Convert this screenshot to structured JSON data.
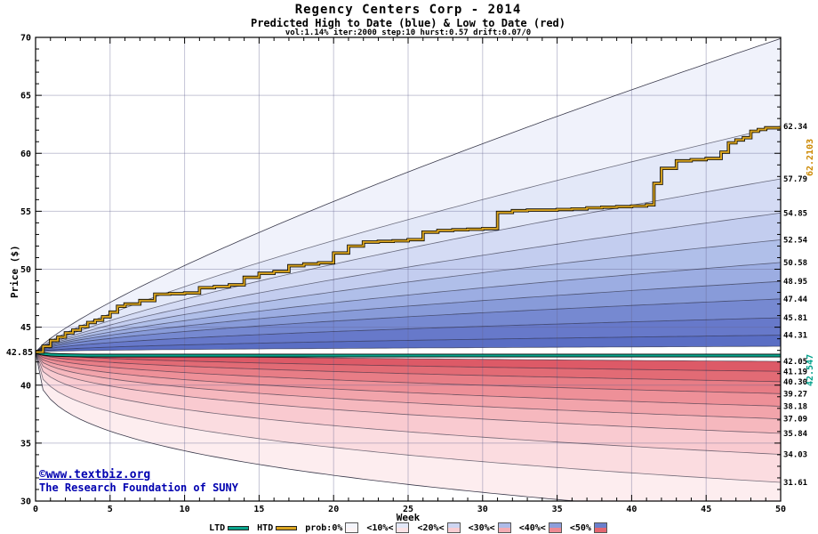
{
  "watermark": {
    "line1": "©www.textbiz.org",
    "line2": "The Research Foundation of SUNY",
    "color": "#0000b0"
  },
  "chart_data": {
    "type": "area",
    "title": "Regency Centers Corp - 2014",
    "subtitle": "Predicted High to Date (blue) &  Low to Date (red)",
    "params_line": "vol:1.14% iter:2000 step:10 hurst:0.57 drift:0.07/0",
    "xlabel": "Week",
    "ylabel": "Price ($)",
    "xlim": [
      0,
      50
    ],
    "ylim": [
      30,
      70
    ],
    "x_ticks": [
      0,
      5,
      10,
      15,
      20,
      25,
      30,
      35,
      40,
      45,
      50
    ],
    "y_ticks": [
      30,
      35,
      40,
      45,
      50,
      55,
      60,
      65,
      70
    ],
    "grid": true,
    "legend_position": "bottom",
    "start": {
      "week": 0,
      "price": 42.85,
      "label": "42.85"
    },
    "high_bands": {
      "comment_edges_are_week50_values_outer_to_inner": true,
      "edges": [
        {
          "end": 69.9,
          "p": 0.8
        },
        {
          "end": 62.34,
          "p": 0.77
        },
        {
          "end": 57.79,
          "p": 0.74
        },
        {
          "end": 54.85,
          "p": 0.71
        },
        {
          "end": 52.54,
          "p": 0.68
        },
        {
          "end": 50.58,
          "p": 0.65
        },
        {
          "end": 48.95,
          "p": 0.62
        },
        {
          "end": 47.44,
          "p": 0.59
        },
        {
          "end": 45.81,
          "p": 0.56
        },
        {
          "end": 44.31,
          "p": 0.53
        },
        {
          "end": 43.35,
          "p": 0.5
        }
      ],
      "colors": [
        "#f0f2fb",
        "#e3e8f8",
        "#d4dbf4",
        "#c3cdef",
        "#b0bfe9",
        "#9cade2",
        "#889bd9",
        "#7689d1",
        "#6779ca",
        "#5a6ec4"
      ]
    },
    "low_bands": {
      "comment_edges_are_week50_values_inner_to_outer": true,
      "edges": [
        {
          "end": 42.05,
          "p": 0.5
        },
        {
          "end": 41.19,
          "p": 0.48
        },
        {
          "end": 40.3,
          "p": 0.46
        },
        {
          "end": 39.27,
          "p": 0.44
        },
        {
          "end": 38.18,
          "p": 0.42
        },
        {
          "end": 37.09,
          "p": 0.4
        },
        {
          "end": 35.84,
          "p": 0.38
        },
        {
          "end": 34.03,
          "p": 0.36
        },
        {
          "end": 31.61,
          "p": 0.34
        },
        {
          "end": 28.6,
          "p": 0.32
        }
      ],
      "colors": [
        "#dd5a67",
        "#e26b75",
        "#e87d86",
        "#ee9098",
        "#f2a4ab",
        "#f6b8be",
        "#f9cad0",
        "#fbdce0",
        "#fdedef"
      ]
    },
    "right_axis_labels": [
      "62.34",
      "57.79",
      "54.85",
      "52.54",
      "50.58",
      "48.95",
      "47.44",
      "45.81",
      "44.31",
      "42.05",
      "41.19",
      "40.30",
      "39.27",
      "38.18",
      "37.09",
      "35.84",
      "34.03",
      "31.61"
    ],
    "htd": {
      "name": "HTD",
      "color": "#daa520",
      "end_label": "62.2103",
      "end_label_color": "#cc8800",
      "steps": [
        [
          0,
          42.85
        ],
        [
          0.5,
          43.35
        ],
        [
          1,
          43.85
        ],
        [
          1.5,
          44.15
        ],
        [
          2,
          44.5
        ],
        [
          2.5,
          44.75
        ],
        [
          3,
          45.05
        ],
        [
          3.5,
          45.4
        ],
        [
          4,
          45.6
        ],
        [
          4.5,
          45.9
        ],
        [
          5,
          46.3
        ],
        [
          5.5,
          46.8
        ],
        [
          6,
          47.0
        ],
        [
          7,
          47.3
        ],
        [
          8,
          47.85
        ],
        [
          9,
          47.9
        ],
        [
          10,
          47.95
        ],
        [
          11,
          48.4
        ],
        [
          12,
          48.5
        ],
        [
          13,
          48.65
        ],
        [
          14,
          49.3
        ],
        [
          15,
          49.65
        ],
        [
          16,
          49.8
        ],
        [
          17,
          50.3
        ],
        [
          18,
          50.45
        ],
        [
          19,
          50.55
        ],
        [
          20,
          51.4
        ],
        [
          21,
          52.0
        ],
        [
          22,
          52.35
        ],
        [
          23,
          52.4
        ],
        [
          24,
          52.45
        ],
        [
          25,
          52.55
        ],
        [
          26,
          53.2
        ],
        [
          27,
          53.35
        ],
        [
          28,
          53.4
        ],
        [
          29,
          53.45
        ],
        [
          30,
          53.5
        ],
        [
          31,
          54.9
        ],
        [
          32,
          55.05
        ],
        [
          33,
          55.1
        ],
        [
          34,
          55.1
        ],
        [
          35,
          55.15
        ],
        [
          36,
          55.2
        ],
        [
          37,
          55.3
        ],
        [
          38,
          55.35
        ],
        [
          39,
          55.4
        ],
        [
          40,
          55.45
        ],
        [
          41,
          55.55
        ],
        [
          41.5,
          57.4
        ],
        [
          42,
          58.7
        ],
        [
          43,
          59.35
        ],
        [
          44,
          59.45
        ],
        [
          45,
          59.55
        ],
        [
          46,
          60.1
        ],
        [
          46.5,
          60.9
        ],
        [
          47,
          61.15
        ],
        [
          47.5,
          61.35
        ],
        [
          48,
          61.9
        ],
        [
          48.5,
          62.05
        ],
        [
          49,
          62.2
        ],
        [
          50,
          62.34
        ]
      ]
    },
    "ltd": {
      "name": "LTD",
      "color": "#0aa58c",
      "end_label": "42.547",
      "end_label_color": "#00a08a",
      "points": [
        [
          0,
          42.85
        ],
        [
          0.4,
          42.72
        ],
        [
          1,
          42.63
        ],
        [
          2,
          42.58
        ],
        [
          3.5,
          42.55
        ],
        [
          50,
          42.55
        ]
      ]
    },
    "legend_items": [
      {
        "label": "LTD",
        "type": "line",
        "color": "#0aa58c"
      },
      {
        "label": "HTD",
        "type": "line",
        "color": "#daa520"
      },
      {
        "label": "prob:0%",
        "type": "box",
        "top": "#f4f5fc",
        "bottom": "#fdf4f5"
      },
      {
        "label": "<10%<",
        "type": "box",
        "top": "#e3e8f8",
        "bottom": "#fbe3e6"
      },
      {
        "label": "<20%<",
        "type": "box",
        "top": "#cdd5f1",
        "bottom": "#f8ccd2"
      },
      {
        "label": "<30%<",
        "type": "box",
        "top": "#aebbe8",
        "bottom": "#f3abb3"
      },
      {
        "label": "<40%<",
        "type": "box",
        "top": "#8d9edb",
        "bottom": "#ed8993"
      },
      {
        "label": "<50%",
        "type": "box",
        "top": "#6a7ecc",
        "bottom": "#e36671"
      }
    ]
  }
}
